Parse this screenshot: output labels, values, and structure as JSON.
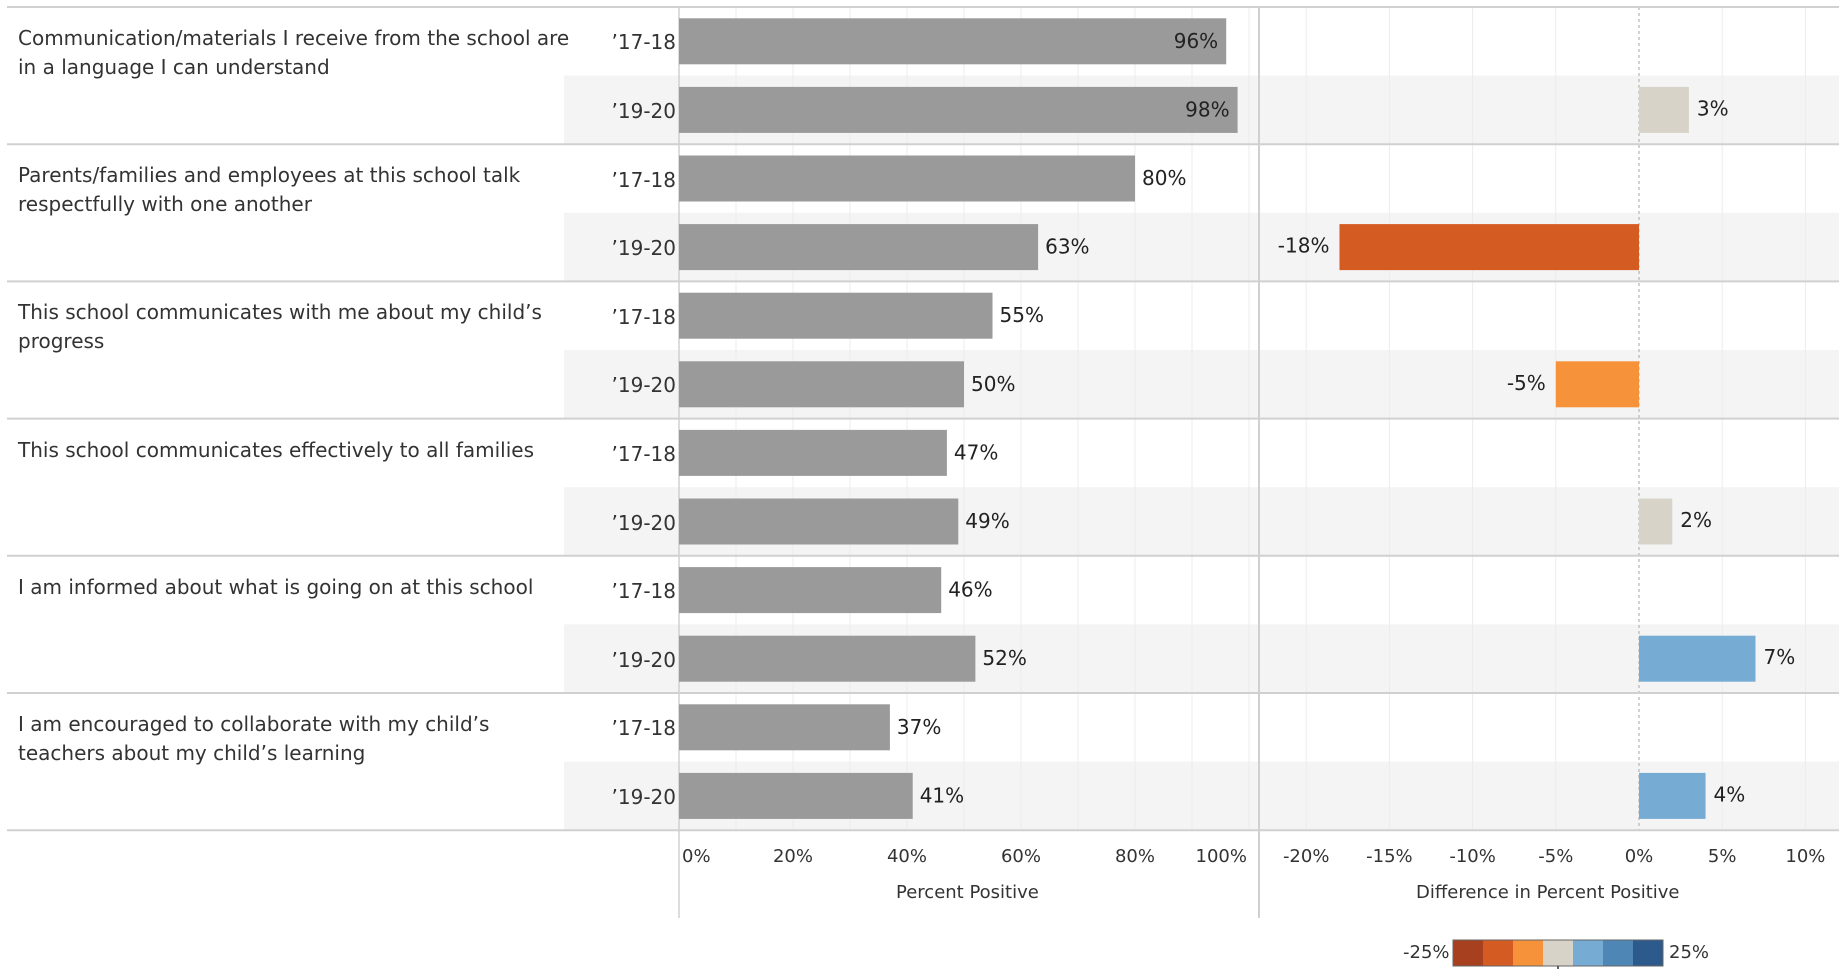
{
  "chart_data": [
    {
      "type": "bar",
      "orientation": "horizontal",
      "xlabel": "Percent Positive",
      "xlim": [
        0,
        100
      ],
      "x_ticks": [
        "0%",
        "20%",
        "40%",
        "60%",
        "80%",
        "100%"
      ],
      "groups": [
        {
          "question": "Communication/materials I receive from the school are in a language I can understand",
          "rows": [
            {
              "year": "’17-18",
              "value": 96,
              "label": "96%"
            },
            {
              "year": "’19-20",
              "value": 98,
              "label": "98%"
            }
          ]
        },
        {
          "question": "Parents/families and employees at this school talk respectfully with one another",
          "rows": [
            {
              "year": "’17-18",
              "value": 80,
              "label": "80%"
            },
            {
              "year": "’19-20",
              "value": 63,
              "label": "63%"
            }
          ]
        },
        {
          "question": "This school communicates with me about my child’s progress",
          "rows": [
            {
              "year": "’17-18",
              "value": 55,
              "label": "55%"
            },
            {
              "year": "’19-20",
              "value": 50,
              "label": "50%"
            }
          ]
        },
        {
          "question": "This school communicates effectively to all families",
          "rows": [
            {
              "year": "’17-18",
              "value": 47,
              "label": "47%"
            },
            {
              "year": "’19-20",
              "value": 49,
              "label": "49%"
            }
          ]
        },
        {
          "question": "I am informed about what is going on at this school",
          "rows": [
            {
              "year": "’17-18",
              "value": 46,
              "label": "46%"
            },
            {
              "year": "’19-20",
              "value": 52,
              "label": "52%"
            }
          ]
        },
        {
          "question": "I am encouraged to collaborate with my child’s teachers about my child’s learning",
          "rows": [
            {
              "year": "’17-18",
              "value": 37,
              "label": "37%"
            },
            {
              "year": "’19-20",
              "value": 41,
              "label": "41%"
            }
          ]
        }
      ],
      "bar_color": "#9a9a9a"
    },
    {
      "type": "bar",
      "orientation": "horizontal",
      "xlabel": "Difference in Percent Positive",
      "xlim": [
        -22,
        11
      ],
      "x_ticks": [
        "-20%",
        "-15%",
        "-10%",
        "-5%",
        "0%",
        "5%",
        "10%"
      ],
      "differences": [
        {
          "value": 3,
          "label": "3%",
          "color": "#d8d3c8"
        },
        {
          "value": -18,
          "label": "-18%",
          "color": "#d45b22"
        },
        {
          "value": -5,
          "label": "-5%",
          "color": "#f5923a"
        },
        {
          "value": 2,
          "label": "2%",
          "color": "#d8d3c8"
        },
        {
          "value": 7,
          "label": "7%",
          "color": "#76acd4"
        },
        {
          "value": 4,
          "label": "4%",
          "color": "#76acd4"
        }
      ]
    }
  ],
  "legend": {
    "min_label": "-25%",
    "max_label": "25%",
    "colors": [
      "#a7401f",
      "#d45b22",
      "#f5923a",
      "#d8d3c8",
      "#76acd4",
      "#4e86b5",
      "#2c5a8c"
    ]
  },
  "colors": {
    "alt_row_bg": "#f4f4f4",
    "separator": "#d0d0d0",
    "grid": "#ececec"
  }
}
